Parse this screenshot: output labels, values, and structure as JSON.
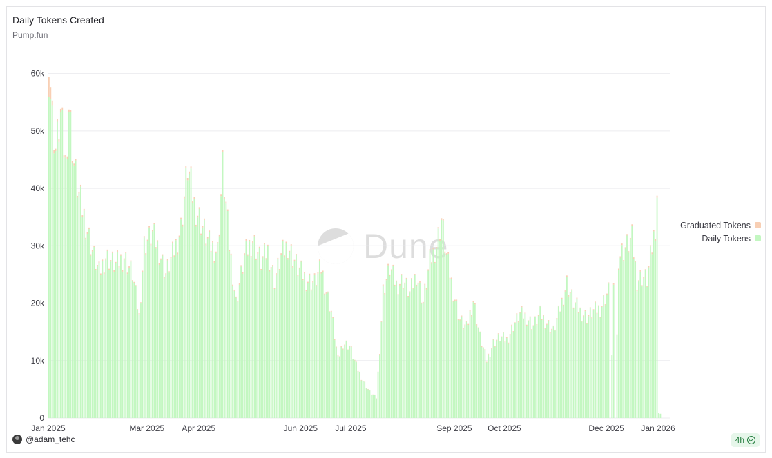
{
  "header": {
    "title": "Daily Tokens Created",
    "subtitle": "Pump.fun"
  },
  "watermark": {
    "text": "Dune"
  },
  "footer": {
    "author": "@adam_tehc",
    "refresh_label": "4h"
  },
  "legend": [
    {
      "name": "Graduated Tokens",
      "color": "#f8cfb4"
    },
    {
      "name": "Daily Tokens",
      "color": "#c3f7c1"
    }
  ],
  "colors": {
    "daily": "#c3f7c1",
    "graduated": "#f8cfb4",
    "grid": "#ececef",
    "axis_text": "#3c3c44"
  },
  "chart_data": {
    "type": "bar",
    "stacked": true,
    "title": "Daily Tokens Created",
    "subtitle": "Pump.fun",
    "ylim": [
      0,
      65000
    ],
    "y_ticks": [
      0,
      10000,
      20000,
      30000,
      40000,
      50000,
      60000
    ],
    "y_tick_labels": [
      "0",
      "10k",
      "20k",
      "30k",
      "40k",
      "50k",
      "60k"
    ],
    "x_range": [
      "2025-01-01",
      "2026-01-08"
    ],
    "x_tick_labels": [
      {
        "date": "2025-01-01",
        "label": "Jan 2025"
      },
      {
        "date": "2025-03-01",
        "label": "Mar 2025"
      },
      {
        "date": "2025-04-01",
        "label": "Apr 2025"
      },
      {
        "date": "2025-06-01",
        "label": "Jun 2025"
      },
      {
        "date": "2025-07-01",
        "label": "Jul 2025"
      },
      {
        "date": "2025-09-01",
        "label": "Sep 2025"
      },
      {
        "date": "2025-10-01",
        "label": "Oct 2025"
      },
      {
        "date": "2025-12-01",
        "label": "Dec 2025"
      },
      {
        "date": "2026-01-01",
        "label": "Jan 2026"
      }
    ],
    "grid": true,
    "legend_position": "right",
    "anchors": [
      [
        "2025-01-01",
        60800,
        3500
      ],
      [
        "2025-01-03",
        52000,
        800
      ],
      [
        "2025-01-05",
        46500,
        400
      ],
      [
        "2025-01-08",
        52500,
        500
      ],
      [
        "2025-01-11",
        44000,
        400
      ],
      [
        "2025-01-13",
        54200,
        400
      ],
      [
        "2025-01-16",
        44000,
        300
      ],
      [
        "2025-01-19",
        38500,
        300
      ],
      [
        "2025-01-22",
        35000,
        300
      ],
      [
        "2025-01-27",
        29000,
        250
      ],
      [
        "2025-01-31",
        25000,
        250
      ],
      [
        "2025-02-04",
        28000,
        250
      ],
      [
        "2025-02-10",
        26500,
        250
      ],
      [
        "2025-02-15",
        28000,
        250
      ],
      [
        "2025-02-20",
        25000,
        200
      ],
      [
        "2025-02-24",
        17500,
        200
      ],
      [
        "2025-02-27",
        30000,
        250
      ],
      [
        "2025-03-04",
        32000,
        250
      ],
      [
        "2025-03-08",
        29000,
        250
      ],
      [
        "2025-03-12",
        25000,
        200
      ],
      [
        "2025-03-17",
        29000,
        250
      ],
      [
        "2025-03-21",
        33000,
        300
      ],
      [
        "2025-03-25",
        43500,
        400
      ],
      [
        "2025-03-29",
        37000,
        300
      ],
      [
        "2025-04-02",
        34000,
        300
      ],
      [
        "2025-04-07",
        30000,
        250
      ],
      [
        "2025-04-12",
        29000,
        250
      ],
      [
        "2025-04-15",
        43500,
        400
      ],
      [
        "2025-04-19",
        30000,
        250
      ],
      [
        "2025-04-23",
        20000,
        200
      ],
      [
        "2025-04-28",
        28000,
        250
      ],
      [
        "2025-05-03",
        31000,
        250
      ],
      [
        "2025-05-08",
        27000,
        250
      ],
      [
        "2025-05-12",
        29000,
        250
      ],
      [
        "2025-05-16",
        24000,
        200
      ],
      [
        "2025-05-20",
        28000,
        250
      ],
      [
        "2025-05-24",
        30000,
        250
      ],
      [
        "2025-05-30",
        26000,
        200
      ],
      [
        "2025-06-04",
        24000,
        200
      ],
      [
        "2025-06-09",
        23500,
        200
      ],
      [
        "2025-06-13",
        26000,
        200
      ],
      [
        "2025-06-16",
        22000,
        200
      ],
      [
        "2025-06-19",
        18500,
        150
      ],
      [
        "2025-06-23",
        10000,
        100
      ],
      [
        "2025-06-26",
        13000,
        120
      ],
      [
        "2025-06-30",
        12500,
        120
      ],
      [
        "2025-07-04",
        9000,
        80
      ],
      [
        "2025-07-08",
        6500,
        60
      ],
      [
        "2025-07-12",
        4500,
        50
      ],
      [
        "2025-07-16",
        3500,
        40
      ],
      [
        "2025-07-18",
        12000,
        120
      ],
      [
        "2025-07-20",
        22000,
        200
      ],
      [
        "2025-07-24",
        26000,
        250
      ],
      [
        "2025-07-28",
        23000,
        200
      ],
      [
        "2025-08-01",
        24000,
        200
      ],
      [
        "2025-08-05",
        21500,
        200
      ],
      [
        "2025-08-09",
        25000,
        200
      ],
      [
        "2025-08-13",
        20000,
        200
      ],
      [
        "2025-08-17",
        27000,
        250
      ],
      [
        "2025-08-21",
        30000,
        250
      ],
      [
        "2025-08-24",
        34500,
        300
      ],
      [
        "2025-08-27",
        28000,
        250
      ],
      [
        "2025-08-31",
        22000,
        200
      ],
      [
        "2025-09-04",
        17000,
        150
      ],
      [
        "2025-09-08",
        15500,
        150
      ],
      [
        "2025-09-12",
        20500,
        200
      ],
      [
        "2025-09-16",
        14000,
        150
      ],
      [
        "2025-09-20",
        10000,
        100
      ],
      [
        "2025-09-24",
        13000,
        120
      ],
      [
        "2025-09-28",
        14000,
        120
      ],
      [
        "2025-10-02",
        13500,
        120
      ],
      [
        "2025-10-06",
        16000,
        150
      ],
      [
        "2025-10-10",
        18000,
        150
      ],
      [
        "2025-10-14",
        17500,
        150
      ],
      [
        "2025-10-18",
        16000,
        150
      ],
      [
        "2025-10-22",
        18000,
        150
      ],
      [
        "2025-10-26",
        16500,
        150
      ],
      [
        "2025-10-30",
        15000,
        150
      ],
      [
        "2025-11-03",
        19000,
        150
      ],
      [
        "2025-11-07",
        23500,
        200
      ],
      [
        "2025-11-11",
        20000,
        200
      ],
      [
        "2025-11-15",
        18500,
        150
      ],
      [
        "2025-11-19",
        17500,
        150
      ],
      [
        "2025-11-23",
        18500,
        150
      ],
      [
        "2025-11-27",
        19000,
        150
      ],
      [
        "2025-11-30",
        21000,
        150
      ],
      [
        "2025-12-02",
        22000,
        200
      ],
      [
        "2025-12-03",
        0,
        0
      ],
      [
        "2025-12-05",
        21500,
        200
      ],
      [
        "2025-12-06",
        0,
        0
      ],
      [
        "2025-12-08",
        28000,
        250
      ],
      [
        "2025-12-12",
        29500,
        250
      ],
      [
        "2025-12-16",
        31000,
        250
      ],
      [
        "2025-12-19",
        24000,
        200
      ],
      [
        "2025-12-22",
        24500,
        200
      ],
      [
        "2025-12-25",
        24000,
        200
      ],
      [
        "2025-12-28",
        29500,
        250
      ],
      [
        "2025-12-30",
        33500,
        300
      ],
      [
        "2025-12-31",
        39000,
        350
      ],
      [
        "2026-01-01",
        800,
        0
      ]
    ]
  }
}
